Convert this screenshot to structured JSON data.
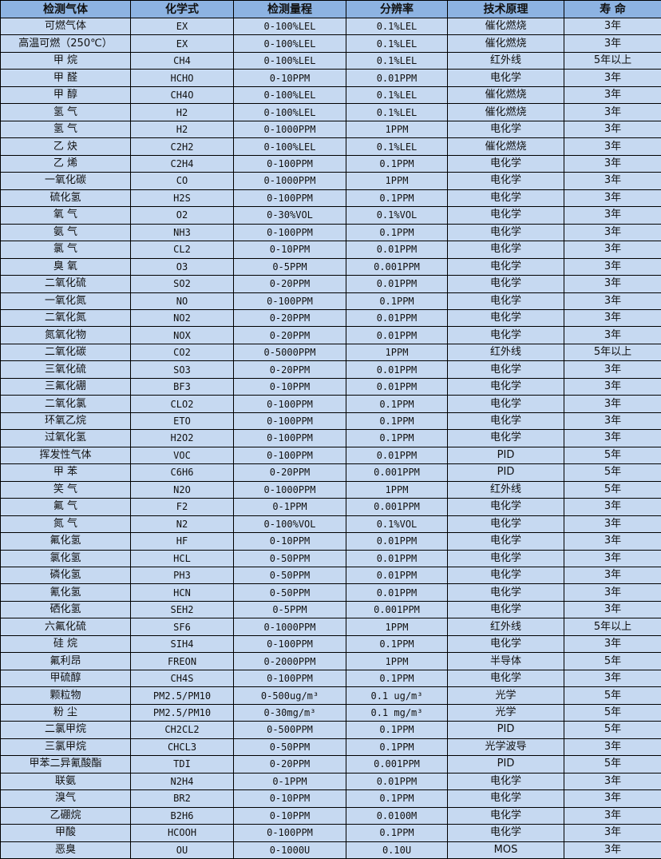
{
  "table": {
    "headers": [
      "检测气体",
      "化学式",
      "检测量程",
      "分辨率",
      "技术原理",
      "寿 命"
    ],
    "rows": [
      [
        "可燃气体",
        "EX",
        "0-100%LEL",
        "0.1%LEL",
        "催化燃烧",
        "3年"
      ],
      [
        "高温可燃（250℃）",
        "EX",
        "0-100%LEL",
        "0.1%LEL",
        "催化燃烧",
        "3年"
      ],
      [
        "甲 烷",
        "CH4",
        "0-100%LEL",
        "0.1%LEL",
        "红外线",
        "5年以上"
      ],
      [
        "甲 醛",
        "HCHO",
        "0-10PPM",
        "0.01PPM",
        "电化学",
        "3年"
      ],
      [
        "甲 醇",
        "CH4O",
        "0-100%LEL",
        "0.1%LEL",
        "催化燃烧",
        "3年"
      ],
      [
        "氢 气",
        "H2",
        "0-100%LEL",
        "0.1%LEL",
        "催化燃烧",
        "3年"
      ],
      [
        "氢 气",
        "H2",
        "0-1000PPM",
        "1PPM",
        "电化学",
        "3年"
      ],
      [
        "乙 炔",
        "C2H2",
        "0-100%LEL",
        "0.1%LEL",
        "催化燃烧",
        "3年"
      ],
      [
        "乙 烯",
        "C2H4",
        "0-100PPM",
        "0.1PPM",
        "电化学",
        "3年"
      ],
      [
        "一氧化碳",
        "CO",
        "0-1000PPM",
        "1PPM",
        "电化学",
        "3年"
      ],
      [
        "硫化氢",
        "H2S",
        "0-100PPM",
        "0.1PPM",
        "电化学",
        "3年"
      ],
      [
        "氧 气",
        "O2",
        "0-30%VOL",
        "0.1%VOL",
        "电化学",
        "3年"
      ],
      [
        "氨 气",
        "NH3",
        "0-100PPM",
        "0.1PPM",
        "电化学",
        "3年"
      ],
      [
        "氯 气",
        "CL2",
        "0-10PPM",
        "0.01PPM",
        "电化学",
        "3年"
      ],
      [
        "臭 氧",
        "O3",
        "0-5PPM",
        "0.001PPM",
        "电化学",
        "3年"
      ],
      [
        "二氧化硫",
        "SO2",
        "0-20PPM",
        "0.01PPM",
        "电化学",
        "3年"
      ],
      [
        "一氧化氮",
        "NO",
        "0-100PPM",
        "0.1PPM",
        "电化学",
        "3年"
      ],
      [
        "二氧化氮",
        "NO2",
        "0-20PPM",
        "0.01PPM",
        "电化学",
        "3年"
      ],
      [
        "氮氧化物",
        "NOX",
        "0-20PPM",
        "0.01PPM",
        "电化学",
        "3年"
      ],
      [
        "二氧化碳",
        "CO2",
        "0-5000PPM",
        "1PPM",
        "红外线",
        "5年以上"
      ],
      [
        "三氧化硫",
        "SO3",
        "0-20PPM",
        "0.01PPM",
        "电化学",
        "3年"
      ],
      [
        "三氟化硼",
        "BF3",
        "0-10PPM",
        "0.01PPM",
        "电化学",
        "3年"
      ],
      [
        "二氧化氯",
        "CLO2",
        "0-100PPM",
        "0.1PPM",
        "电化学",
        "3年"
      ],
      [
        "环氧乙烷",
        "ETO",
        "0-100PPM",
        "0.1PPM",
        "电化学",
        "3年"
      ],
      [
        "过氧化氢",
        "H2O2",
        "0-100PPM",
        "0.1PPM",
        "电化学",
        "3年"
      ],
      [
        "挥发性气体",
        "VOC",
        "0-100PPM",
        "0.01PPM",
        "PID",
        "5年"
      ],
      [
        "甲 苯",
        "C6H6",
        "0-20PPM",
        "0.001PPM",
        "PID",
        "5年"
      ],
      [
        "笑 气",
        "N2O",
        "0-1000PPM",
        "1PPM",
        "红外线",
        "5年"
      ],
      [
        "氟 气",
        "F2",
        "0-1PPM",
        "0.001PPM",
        "电化学",
        "3年"
      ],
      [
        "氮 气",
        "N2",
        "0-100%VOL",
        "0.1%VOL",
        "电化学",
        "3年"
      ],
      [
        "氟化氢",
        "HF",
        "0-10PPM",
        "0.01PPM",
        "电化学",
        "3年"
      ],
      [
        "氯化氢",
        "HCL",
        "0-50PPM",
        "0.01PPM",
        "电化学",
        "3年"
      ],
      [
        "磷化氢",
        "PH3",
        "0-50PPM",
        "0.01PPM",
        "电化学",
        "3年"
      ],
      [
        "氰化氢",
        "HCN",
        "0-50PPM",
        "0.01PPM",
        "电化学",
        "3年"
      ],
      [
        "硒化氢",
        "SEH2",
        "0-5PPM",
        "0.001PPM",
        "电化学",
        "3年"
      ],
      [
        "六氟化硫",
        "SF6",
        "0-1000PPM",
        "1PPM",
        "红外线",
        "5年以上"
      ],
      [
        "硅 烷",
        "SIH4",
        "0-100PPM",
        "0.1PPM",
        "电化学",
        "3年"
      ],
      [
        "氟利昂",
        "FREON",
        "0-2000PPM",
        "1PPM",
        "半导体",
        "5年"
      ],
      [
        "甲硫醇",
        "CH4S",
        "0-100PPM",
        "0.1PPM",
        "电化学",
        "3年"
      ],
      [
        "颗粒物",
        "PM2.5/PM10",
        "0-500ug/m³",
        "0.1 ug/m³",
        "光学",
        "5年"
      ],
      [
        "粉 尘",
        "PM2.5/PM10",
        "0-30mg/m³",
        "0.1 mg/m³",
        "光学",
        "5年"
      ],
      [
        "二氯甲烷",
        "CH2CL2",
        "0-500PPM",
        "0.1PPM",
        "PID",
        "5年"
      ],
      [
        "三氯甲烷",
        "CHCL3",
        "0-50PPM",
        "0.1PPM",
        "光学波导",
        "3年"
      ],
      [
        "甲苯二异氰酸酯",
        "TDI",
        "0-20PPM",
        "0.001PPM",
        "PID",
        "5年"
      ],
      [
        "联氨",
        "N2H4",
        "0-1PPM",
        "0.01PPM",
        "电化学",
        "3年"
      ],
      [
        "溴气",
        "BR2",
        "0-10PPM",
        "0.1PPM",
        "电化学",
        "3年"
      ],
      [
        "乙硼烷",
        "B2H6",
        "0-10PPM",
        "0.0100M",
        "电化学",
        "3年"
      ],
      [
        "甲酸",
        "HCOOH",
        "0-100PPM",
        "0.1PPM",
        "电化学",
        "3年"
      ],
      [
        "恶臭",
        "OU",
        "0-1000U",
        "0.10U",
        "MOS",
        "3年"
      ]
    ]
  },
  "colors": {
    "header_bg": "#8db3e2",
    "body_bg": "#c6d9f1",
    "border": "#000000"
  }
}
